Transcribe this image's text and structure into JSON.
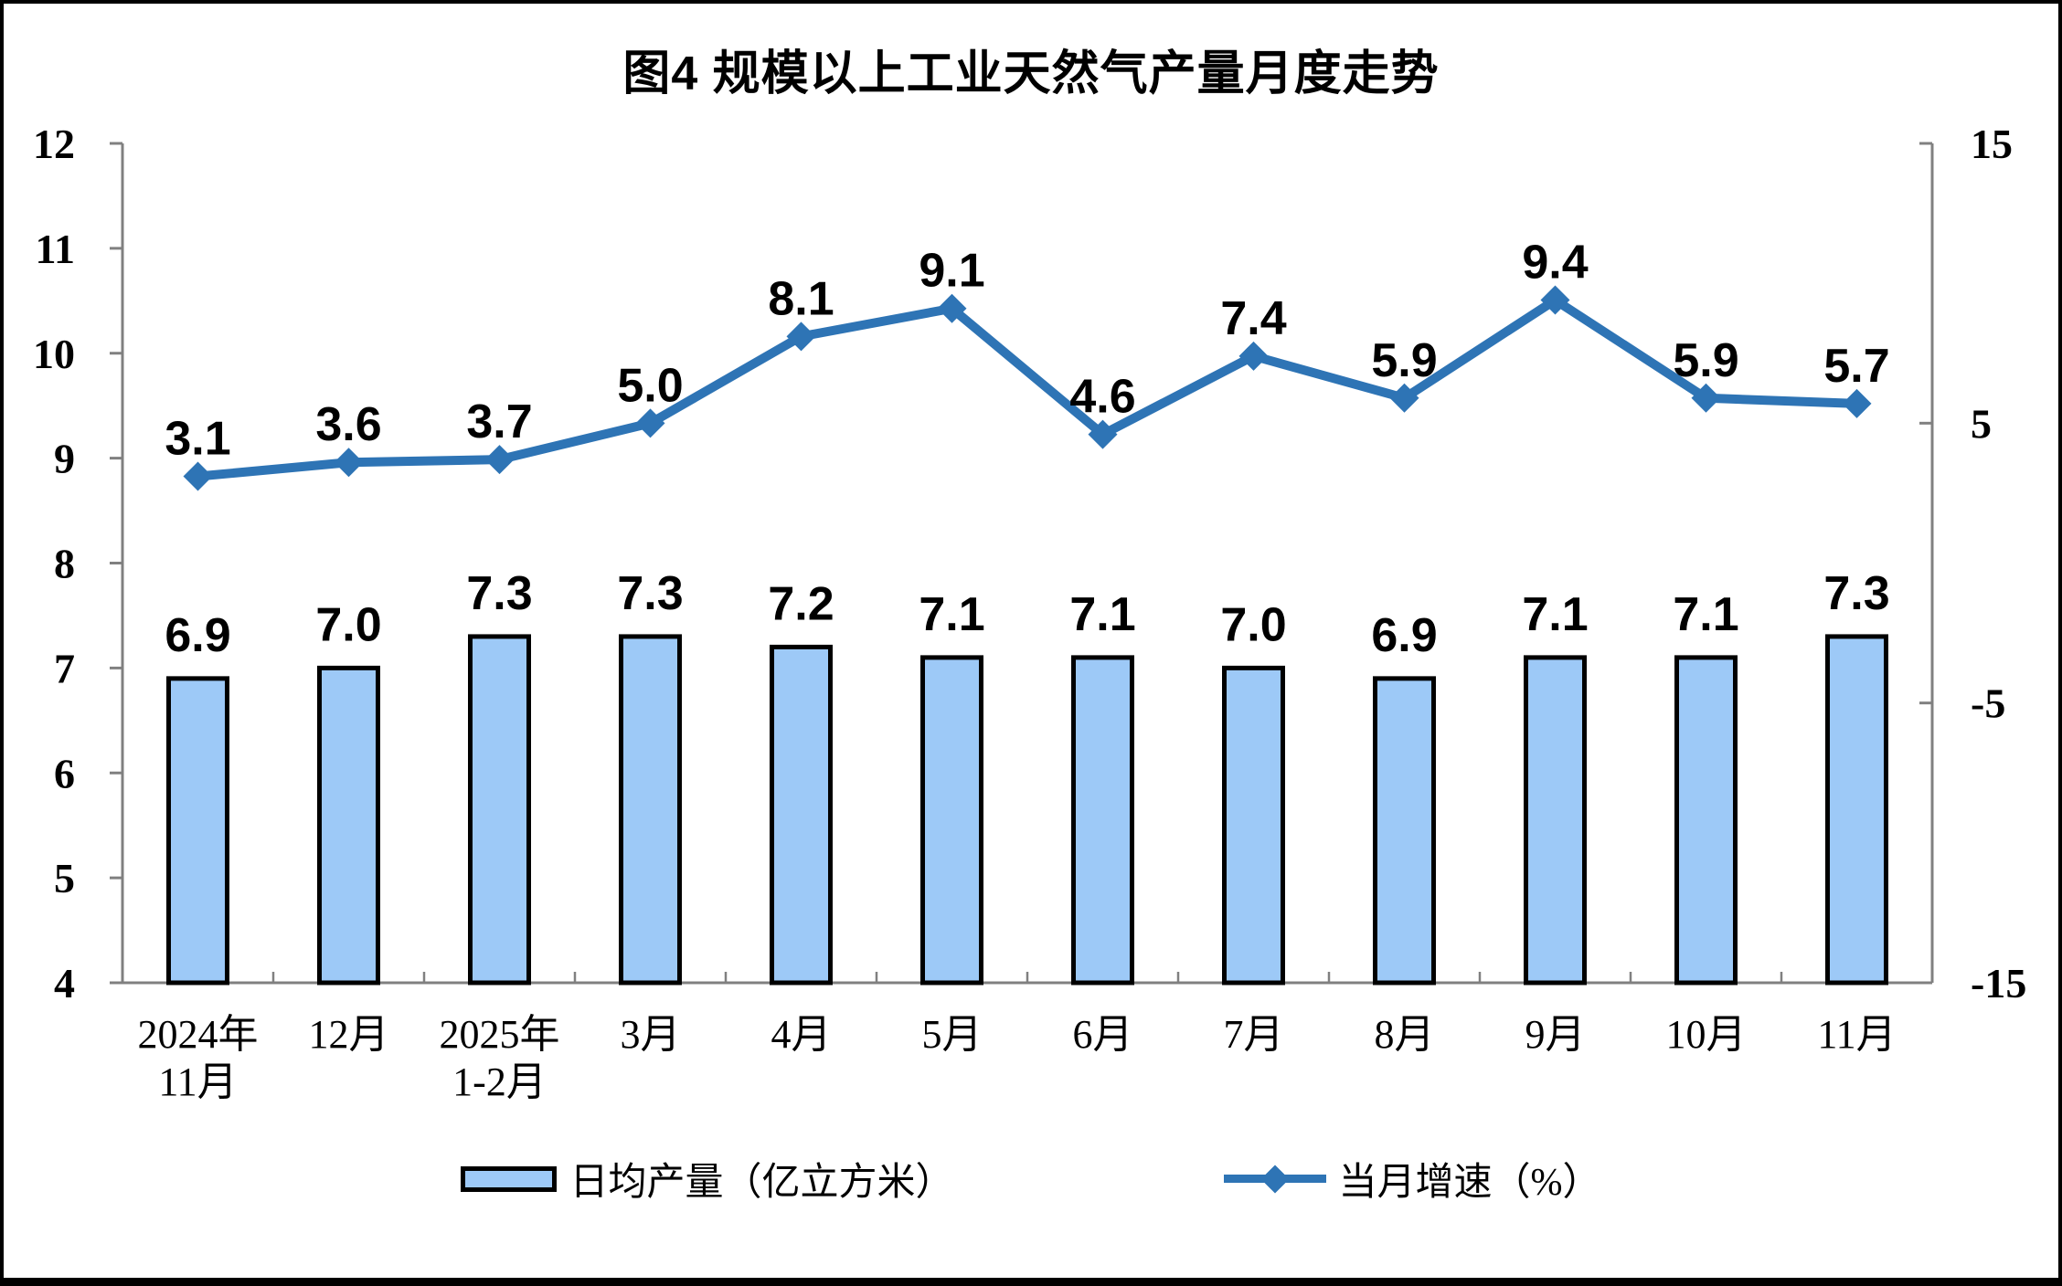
{
  "title": "图4 规模以上工业天然气产量月度走势",
  "colors": {
    "bar_fill": "#9DC9F7",
    "bar_border": "#000000",
    "line": "#2E74B5",
    "axis": "#808080",
    "text": "#000000"
  },
  "legend": {
    "bar_label": "日均产量（亿立方米）",
    "line_label": "当月增速（%）"
  },
  "chart_data": {
    "type": "bar+line combo",
    "title": "图4 规模以上工业天然气产量月度走势",
    "categories": [
      "2024年\n11月",
      "12月",
      "2025年\n1-2月",
      "3月",
      "4月",
      "5月",
      "6月",
      "7月",
      "8月",
      "9月",
      "10月",
      "11月"
    ],
    "series": [
      {
        "name": "日均产量（亿立方米）",
        "type": "bar",
        "axis": "left",
        "values": [
          6.9,
          7.0,
          7.3,
          7.3,
          7.2,
          7.1,
          7.1,
          7.0,
          6.9,
          7.1,
          7.1,
          7.3
        ],
        "labels": [
          "6.9",
          "7.0",
          "7.3",
          "7.3",
          "7.2",
          "7.1",
          "7.1",
          "7.0",
          "6.9",
          "7.1",
          "7.1",
          "7.3"
        ]
      },
      {
        "name": "当月增速（%）",
        "type": "line",
        "axis": "right",
        "values": [
          3.1,
          3.6,
          3.7,
          5.0,
          8.1,
          9.1,
          4.6,
          7.4,
          5.9,
          9.4,
          5.9,
          5.7
        ],
        "labels": [
          "3.1",
          "3.6",
          "3.7",
          "5.0",
          "8.1",
          "9.1",
          "4.6",
          "7.4",
          "5.9",
          "9.4",
          "5.9",
          "5.7"
        ]
      }
    ],
    "left_axis": {
      "min": 4,
      "max": 12,
      "tick_step": 1,
      "ticks": [
        12,
        11,
        10,
        9,
        8,
        7,
        6,
        5,
        4
      ]
    },
    "right_axis": {
      "min": -15,
      "max": 15,
      "tick_step": 10,
      "ticks": [
        15,
        5,
        -5,
        -15
      ]
    },
    "grid": false,
    "legend_position": "bottom"
  }
}
